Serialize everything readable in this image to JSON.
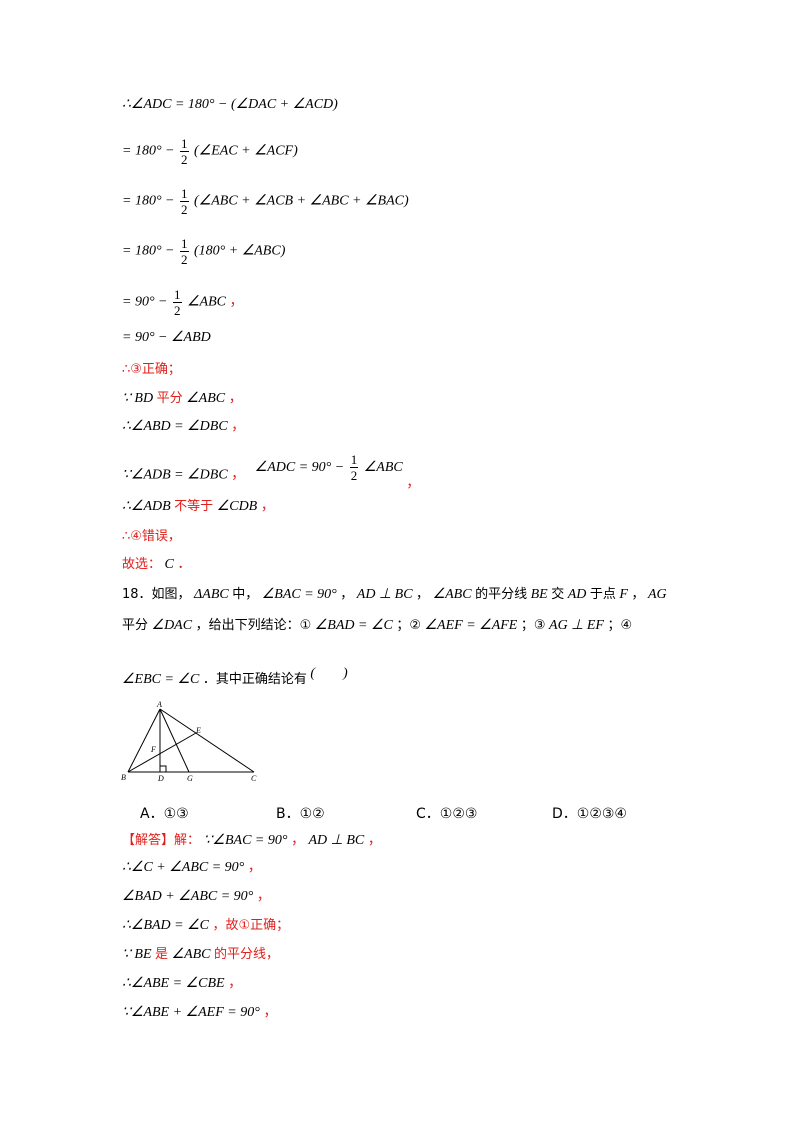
{
  "proof_prev": {
    "l1": "∴∠ADC = 180° − (∠DAC + ∠ACD)",
    "l2a": "= 180° −",
    "l2b": "(∠EAC + ∠ACF)",
    "l3a": "= 180° −",
    "l3b": "(∠ABC + ∠ACB + ∠ABC + ∠BAC)",
    "l4a": "= 180° −",
    "l4b": "(180° + ∠ABC)",
    "l5a": "= 90° −",
    "l5b": "∠ABC",
    "l5c": "，",
    "l6": "= 90° − ∠ABD",
    "l7": "∴③正确；",
    "l8a": "∵ BD",
    "l8b": "平分",
    "l8c": "∠ABC",
    "l8d": "，",
    "l9a": "∴∠ABD = ∠DBC",
    "l9b": "，",
    "l10a": "∵∠ADB = ∠DBC",
    "l10b": "，",
    "l10c": "∠ADC = 90° −",
    "l10d": "∠ABC",
    "l10e": "，",
    "l11a": "∴∠ADB",
    "l11b": "不等于",
    "l11c": "∠CDB",
    "l11d": "，",
    "l12": "∴④错误，",
    "l13a": "故选：",
    "l13b": "C",
    "l13c": "．",
    "frac_num": "1",
    "frac_den": "2"
  },
  "question": {
    "line1a": "18．如图，",
    "line1b": "ΔABC",
    "line1c": "中，",
    "line1d": "∠BAC = 90°",
    "line1e": "，",
    "line1f": "AD ⊥ BC",
    "line1g": "，",
    "line1h": "∠ABC",
    "line1i": "的平分线",
    "line1j": "BE",
    "line1k": "交",
    "line1l": "AD",
    "line1m": "于点",
    "line1n": "F",
    "line1o": "，",
    "line1p": "AG",
    "line2a": "平分",
    "line2b": "∠DAC",
    "line2c": "，给出下列结论：①",
    "line2d": "∠BAD = ∠C",
    "line2e": "；②",
    "line2f": "∠AEF = ∠AFE",
    "line2g": "；③",
    "line2h": "AG ⊥ EF",
    "line2i": "；④",
    "line3a": "∠EBC = ∠C",
    "line3b": "．其中正确结论有",
    "line3c": "(　　)"
  },
  "figure_labels": {
    "A": "A",
    "B": "B",
    "C": "C",
    "D": "D",
    "E": "E",
    "F": "F",
    "G": "G"
  },
  "options": {
    "a": "A．①③",
    "b": "B．①②",
    "c": "C．①②③",
    "d": "D．①②③④"
  },
  "solution": {
    "tag": "【解答】解：",
    "s1a": "∵∠BAC = 90°",
    "s1b": "，",
    "s1c": "AD ⊥ BC",
    "s1d": "，",
    "s2": "∴∠C + ∠ABC = 90°",
    "s2b": "，",
    "s3": "∠BAD + ∠ABC = 90°",
    "s3b": "，",
    "s4a": "∴∠BAD = ∠C",
    "s4b": "，故①正确；",
    "s5a": "∵ BE",
    "s5b": "是",
    "s5c": "∠ABC",
    "s5d": "的平分线，",
    "s6a": "∴∠ABE = ∠CBE",
    "s6b": "，",
    "s7a": "∵∠ABE + ∠AEF = 90°",
    "s7b": "，"
  }
}
